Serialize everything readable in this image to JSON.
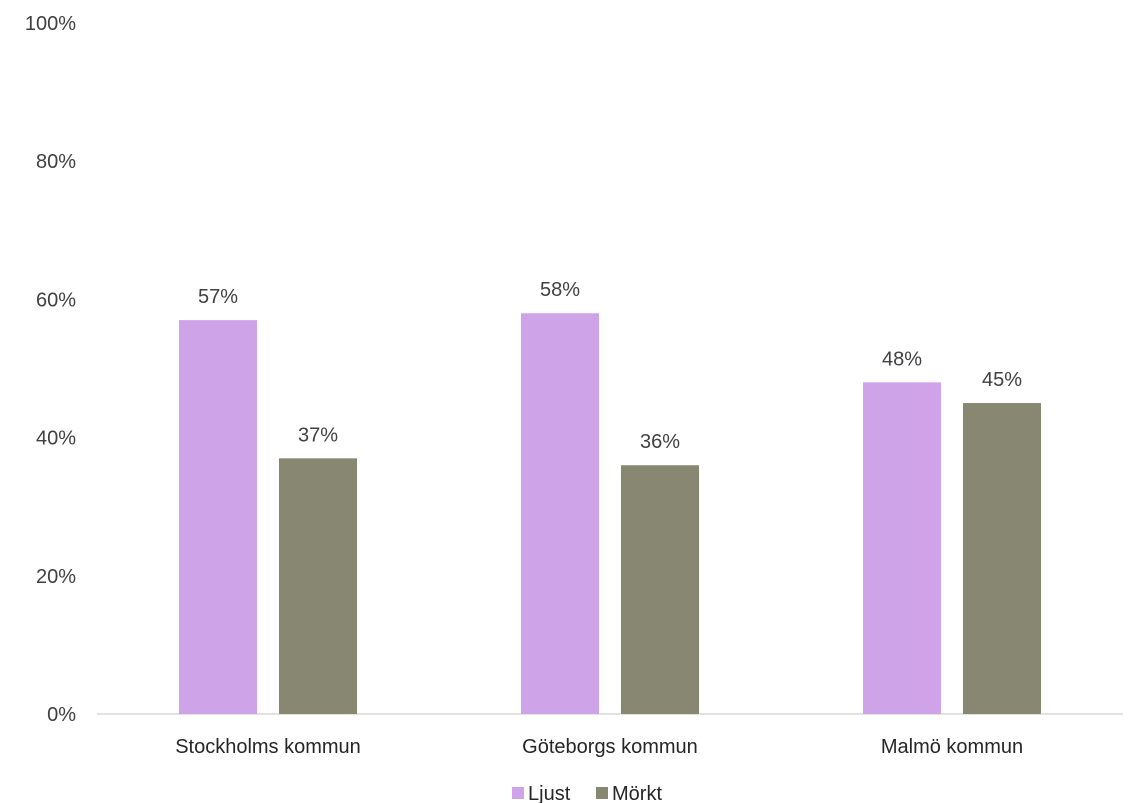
{
  "chart_data": {
    "type": "bar",
    "categories": [
      "Stockholms kommun",
      "Göteborgs kommun",
      "Malmö kommun"
    ],
    "series": [
      {
        "name": "Ljust",
        "color": "#cfa3e8",
        "values": [
          57,
          58,
          48
        ],
        "labels": [
          "57%",
          "58%",
          "48%"
        ]
      },
      {
        "name": "Mörkt",
        "color": "#888771",
        "values": [
          37,
          36,
          45
        ],
        "labels": [
          "37%",
          "36%",
          "45%"
        ]
      }
    ],
    "y_ticks": [
      0,
      20,
      40,
      60,
      80,
      100
    ],
    "y_tick_labels": [
      "0%",
      "20%",
      "40%",
      "60%",
      "80%",
      "100%"
    ],
    "ylim": [
      0,
      100
    ],
    "grid": false,
    "legend_position": "bottom"
  }
}
